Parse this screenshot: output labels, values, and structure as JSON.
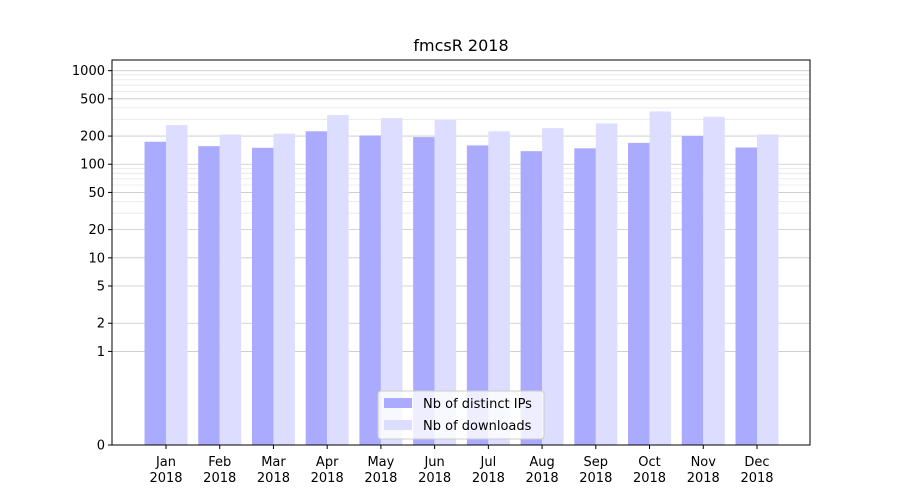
{
  "chart_data": {
    "type": "bar",
    "title": "fmcsR 2018",
    "xlabel": "",
    "ylabel": "",
    "yscale": "symlog",
    "ylim": [
      0,
      1300
    ],
    "yticks": [
      0,
      1,
      2,
      5,
      10,
      20,
      50,
      100,
      200,
      500,
      1000
    ],
    "ytick_labels": [
      "0",
      "1",
      "2",
      "5",
      "10",
      "20",
      "50",
      "100",
      "200",
      "500",
      "1000"
    ],
    "grid": true,
    "legend_position": "bottom-center",
    "categories": [
      {
        "month": "Jan",
        "year": "2018"
      },
      {
        "month": "Feb",
        "year": "2018"
      },
      {
        "month": "Mar",
        "year": "2018"
      },
      {
        "month": "Apr",
        "year": "2018"
      },
      {
        "month": "May",
        "year": "2018"
      },
      {
        "month": "Jun",
        "year": "2018"
      },
      {
        "month": "Jul",
        "year": "2018"
      },
      {
        "month": "Aug",
        "year": "2018"
      },
      {
        "month": "Sep",
        "year": "2018"
      },
      {
        "month": "Oct",
        "year": "2018"
      },
      {
        "month": "Nov",
        "year": "2018"
      },
      {
        "month": "Dec",
        "year": "2018"
      }
    ],
    "series": [
      {
        "name": "Nb of distinct IPs",
        "color": "#aaaaff",
        "values": [
          174,
          156,
          150,
          225,
          203,
          195,
          159,
          138,
          148,
          169,
          200,
          151
        ]
      },
      {
        "name": "Nb of downloads",
        "color": "#ddddff",
        "values": [
          262,
          208,
          212,
          335,
          311,
          298,
          225,
          243,
          273,
          367,
          322,
          208
        ]
      }
    ]
  }
}
